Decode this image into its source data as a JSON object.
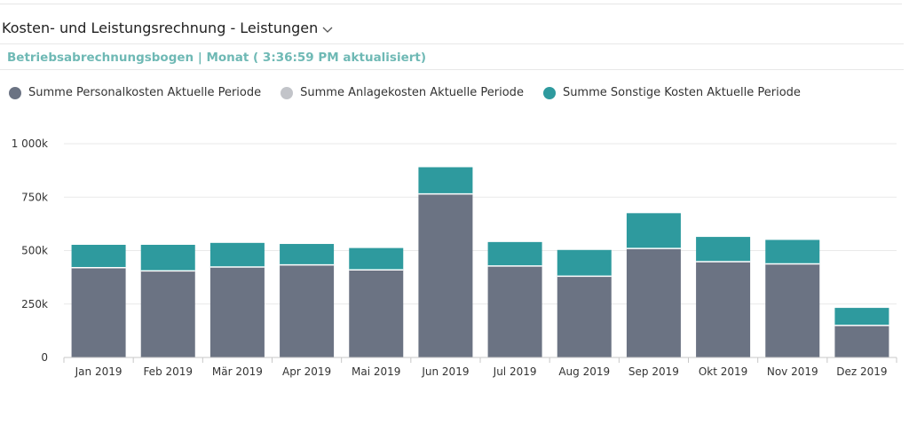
{
  "header": {
    "title": "Kosten- und Leistungsrechnung - Leistungen",
    "subtitle": "Betriebsabrechnungsbogen | Monat ( 3:36:59 PM aktualisiert)"
  },
  "colors": {
    "personal": "#6b7383",
    "anlage": "#c2c4c9",
    "sonstige": "#2e9a9e"
  },
  "chart_data": {
    "type": "bar",
    "stacked": true,
    "categories": [
      "Jan 2019",
      "Feb 2019",
      "Mär 2019",
      "Apr 2019",
      "Mai 2019",
      "Jun 2019",
      "Jul 2019",
      "Aug 2019",
      "Sep 2019",
      "Okt 2019",
      "Nov 2019",
      "Dez 2019"
    ],
    "series": [
      {
        "name": "Summe Personalkosten Aktuelle Periode",
        "color": "#6b7383",
        "values": [
          420000,
          405000,
          423000,
          433000,
          410000,
          765000,
          428000,
          380000,
          510000,
          448000,
          438000,
          150000
        ]
      },
      {
        "name": "Summe Anlagekosten Aktuelle Periode",
        "color": "#c2c4c9",
        "values": [
          0,
          0,
          0,
          0,
          0,
          0,
          0,
          0,
          0,
          0,
          0,
          0
        ]
      },
      {
        "name": "Summe Sonstige Kosten Aktuelle Periode",
        "color": "#2e9a9e",
        "values": [
          107000,
          122000,
          113000,
          98000,
          102000,
          125000,
          112000,
          123000,
          165000,
          116000,
          112000,
          82000
        ]
      }
    ],
    "yticks": [
      {
        "value": 0,
        "label": "0"
      },
      {
        "value": 250000,
        "label": "250k"
      },
      {
        "value": 500000,
        "label": "500k"
      },
      {
        "value": 750000,
        "label": "750k"
      },
      {
        "value": 1000000,
        "label": "1 000k"
      }
    ],
    "ylim": [
      0,
      1000000
    ],
    "grid": true,
    "legend_position": "top-left"
  }
}
